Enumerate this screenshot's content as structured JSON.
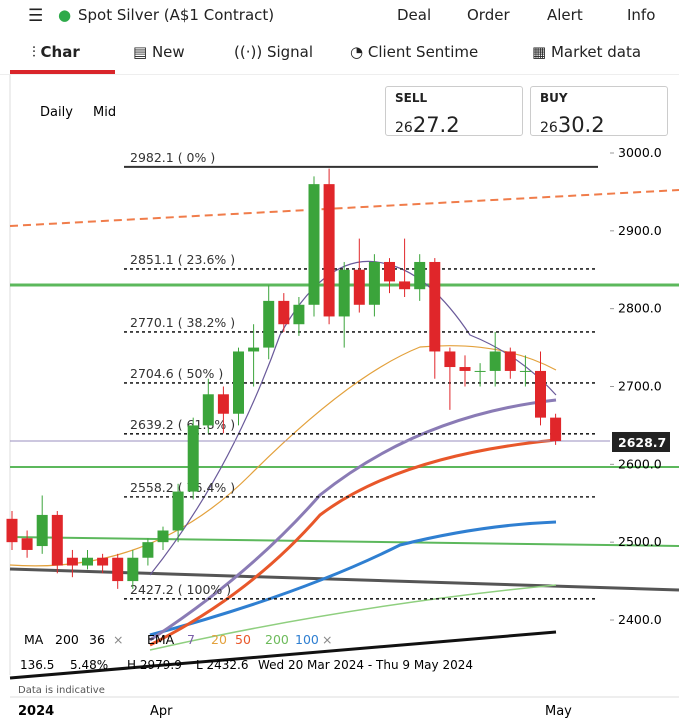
{
  "header": {
    "title": "Spot Silver (A$1 Contract)",
    "menu": [
      "Deal",
      "Order",
      "Alert",
      "Info"
    ]
  },
  "tabs": [
    "Char",
    "New",
    "Signal",
    "Client Sentime",
    "Market data"
  ],
  "chart_options": [
    "Daily",
    "Mid"
  ],
  "sell": {
    "label": "SELL",
    "prefix": "26",
    "main": "27.2"
  },
  "buy": {
    "label": "BUY",
    "prefix": "26",
    "main": "30.2"
  },
  "indicators": {
    "ma": {
      "name": "MA",
      "params": [
        "200",
        "36"
      ],
      "close": "×"
    },
    "ema": {
      "name": "EMA",
      "params": [
        "7",
        "20",
        "50",
        "200",
        "100"
      ],
      "colors": [
        "#7b5fa8",
        "#e3a13c",
        "#e8572a",
        "#6dbb5b",
        "#2f7fd1"
      ],
      "close": "×"
    }
  },
  "info_row": [
    "136.5",
    "5.48%",
    "H 2979.9",
    "L 2432.6",
    "Wed 20 Mar 2024 - Thu 9 May 2024"
  ],
  "note": "Data is indicative",
  "chart_data": {
    "type": "candlestick",
    "ylim": [
      2400,
      3000
    ],
    "yticks": [
      {
        "value": 2400,
        "label": "2400.0"
      },
      {
        "value": 2500,
        "label": "2500.0"
      },
      {
        "value": 2600,
        "label": "2600.0"
      },
      {
        "value": 2700,
        "label": "2700.0"
      },
      {
        "value": 2800,
        "label": "2800.0"
      },
      {
        "value": 2900,
        "label": "2900.0"
      },
      {
        "value": 3000,
        "label": "3000.0"
      }
    ],
    "x_labels": [
      "2024",
      "Apr",
      "May"
    ],
    "current_price": {
      "value": 2628.7,
      "label": "2628.7"
    },
    "fib_levels": [
      {
        "value": 2982.1,
        "label": "2982.1 ( 0% )"
      },
      {
        "value": 2851.1,
        "label": "2851.1 ( 23.6% )"
      },
      {
        "value": 2770.1,
        "label": "2770.1 ( 38.2% )"
      },
      {
        "value": 2704.6,
        "label": "2704.6 ( 50% )"
      },
      {
        "value": 2639.2,
        "label": "2639.2 ( 61.8% )"
      },
      {
        "value": 2558.2,
        "label": "2558.2 ( 76.4% )"
      },
      {
        "value": 2427.2,
        "label": "2427.2 ( 100% )"
      }
    ],
    "up_color": "#3ba43b",
    "down_color": "#e0262a",
    "open": [
      2530,
      2505,
      2495,
      2535,
      2480,
      2470,
      2480,
      2480,
      2450,
      2480,
      2500,
      2515,
      2565,
      2650,
      2690,
      2665,
      2745,
      2750,
      2810,
      2780,
      2805,
      2960,
      2790,
      2850,
      2805,
      2860,
      2835,
      2825,
      2860,
      2745,
      2725,
      2720,
      2720,
      2745,
      2720,
      2720,
      2660
    ],
    "close": [
      2500,
      2490,
      2535,
      2470,
      2470,
      2480,
      2470,
      2450,
      2480,
      2500,
      2515,
      2565,
      2650,
      2690,
      2665,
      2745,
      2750,
      2810,
      2780,
      2805,
      2960,
      2790,
      2850,
      2805,
      2860,
      2835,
      2825,
      2860,
      2745,
      2725,
      2720,
      2720,
      2745,
      2720,
      2720,
      2660,
      2630
    ],
    "high": [
      2540,
      2515,
      2560,
      2540,
      2490,
      2490,
      2485,
      2485,
      2490,
      2505,
      2520,
      2575,
      2660,
      2710,
      2700,
      2750,
      2780,
      2830,
      2820,
      2815,
      2970,
      2980,
      2860,
      2890,
      2870,
      2865,
      2890,
      2870,
      2865,
      2750,
      2740,
      2730,
      2770,
      2750,
      2740,
      2745,
      2665
    ],
    "low": [
      2490,
      2480,
      2485,
      2460,
      2455,
      2465,
      2460,
      2440,
      2440,
      2470,
      2490,
      2500,
      2555,
      2640,
      2640,
      2650,
      2700,
      2735,
      2770,
      2765,
      2790,
      2780,
      2750,
      2795,
      2790,
      2820,
      2815,
      2810,
      2710,
      2670,
      2700,
      2700,
      2700,
      2710,
      2700,
      2650,
      2625
    ]
  }
}
